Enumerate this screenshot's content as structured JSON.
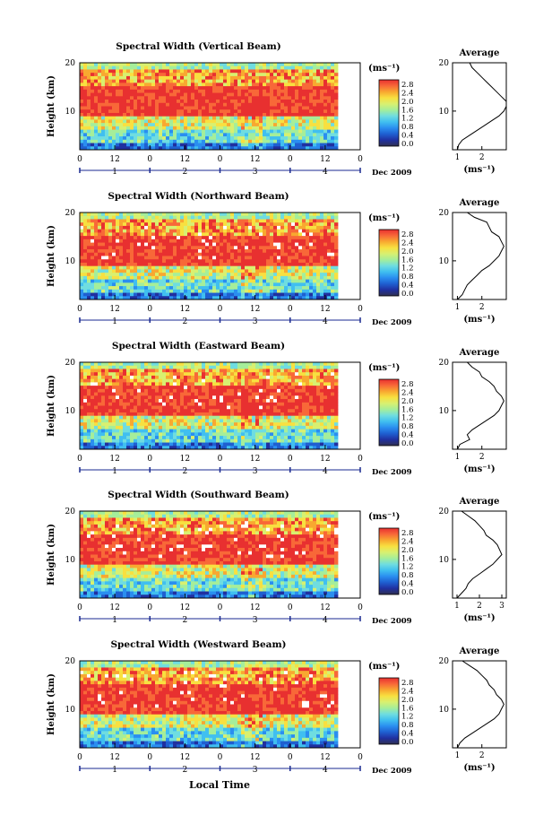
{
  "chart_data": [
    {
      "type": "heatmap",
      "title": "Spectral Width (Vertical Beam)",
      "ylabel": "Height (km)",
      "yticks": [
        "20",
        "10"
      ],
      "xticks": [
        "0",
        "12",
        "0",
        "12",
        "0",
        "12",
        "0",
        "12",
        "0"
      ],
      "days": [
        "1",
        "2",
        "3",
        "4"
      ],
      "date_label": "Dec 2009",
      "colorbar_unit": "(ms⁻¹)",
      "colorbar_ticks": [
        "2.8",
        "2.4",
        "2.0",
        "1.6",
        "1.2",
        "0.8",
        "0.4",
        "0.0"
      ],
      "avg_title": "Average",
      "avg_xticks": [
        "1",
        "2"
      ],
      "avg_xlabel": "(ms⁻¹)",
      "avg_xlim": [
        0.8,
        3.0
      ],
      "profile": [
        [
          1.0,
          2.0
        ],
        [
          1.05,
          3.0
        ],
        [
          1.2,
          4.0
        ],
        [
          1.5,
          5.0
        ],
        [
          1.8,
          6.0
        ],
        [
          2.1,
          7.0
        ],
        [
          2.4,
          8.0
        ],
        [
          2.7,
          9.0
        ],
        [
          2.9,
          10.0
        ],
        [
          3.0,
          11.0
        ],
        [
          3.0,
          12.0
        ],
        [
          2.8,
          13.0
        ],
        [
          2.6,
          14.0
        ],
        [
          2.4,
          15.0
        ],
        [
          2.2,
          16.0
        ],
        [
          2.0,
          17.0
        ],
        [
          1.8,
          18.0
        ],
        [
          1.6,
          19.0
        ],
        [
          1.5,
          20.0
        ]
      ]
    },
    {
      "type": "heatmap",
      "title": "Spectral Width (Northward Beam)",
      "ylabel": "Height (km)",
      "yticks": [
        "20",
        "10"
      ],
      "xticks": [
        "0",
        "12",
        "0",
        "12",
        "0",
        "12",
        "0",
        "12",
        "0"
      ],
      "days": [
        "1",
        "2",
        "3",
        "4"
      ],
      "date_label": "Dec 2009",
      "colorbar_unit": "(ms⁻¹)",
      "colorbar_ticks": [
        "2.8",
        "2.4",
        "2.0",
        "1.6",
        "1.2",
        "0.8",
        "0.4",
        "0.0"
      ],
      "avg_title": "Average",
      "avg_xticks": [
        "1",
        "2"
      ],
      "avg_xlabel": "(ms⁻¹)",
      "avg_xlim": [
        0.8,
        3.0
      ],
      "profile": [
        [
          1.0,
          2.0
        ],
        [
          1.2,
          3.0
        ],
        [
          1.3,
          4.0
        ],
        [
          1.4,
          5.0
        ],
        [
          1.6,
          6.0
        ],
        [
          1.8,
          7.0
        ],
        [
          2.0,
          8.0
        ],
        [
          2.3,
          9.0
        ],
        [
          2.5,
          10.0
        ],
        [
          2.7,
          11.0
        ],
        [
          2.8,
          12.0
        ],
        [
          2.9,
          13.0
        ],
        [
          2.8,
          14.0
        ],
        [
          2.7,
          15.0
        ],
        [
          2.4,
          16.0
        ],
        [
          2.3,
          17.0
        ],
        [
          2.2,
          18.0
        ],
        [
          1.7,
          19.0
        ],
        [
          1.4,
          20.0
        ]
      ]
    },
    {
      "type": "heatmap",
      "title": "Spectral Width (Eastward Beam)",
      "ylabel": "Height (km)",
      "yticks": [
        "20",
        "10"
      ],
      "xticks": [
        "0",
        "12",
        "0",
        "12",
        "0",
        "12",
        "0",
        "12",
        "0"
      ],
      "days": [
        "1",
        "2",
        "3",
        "4"
      ],
      "date_label": "Dec 2009",
      "colorbar_unit": "(ms⁻¹)",
      "colorbar_ticks": [
        "2.8",
        "2.4",
        "2.0",
        "1.6",
        "1.2",
        "0.8",
        "0.4",
        "0.0"
      ],
      "avg_title": "Average",
      "avg_xticks": [
        "1",
        "2"
      ],
      "avg_xlabel": "(ms⁻¹)",
      "avg_xlim": [
        0.8,
        3.0
      ],
      "profile": [
        [
          1.0,
          2.0
        ],
        [
          1.1,
          3.0
        ],
        [
          1.5,
          4.0
        ],
        [
          1.4,
          5.0
        ],
        [
          1.6,
          6.0
        ],
        [
          1.9,
          7.0
        ],
        [
          2.2,
          8.0
        ],
        [
          2.5,
          9.0
        ],
        [
          2.7,
          10.0
        ],
        [
          2.8,
          11.0
        ],
        [
          2.9,
          12.0
        ],
        [
          2.8,
          13.0
        ],
        [
          2.6,
          14.0
        ],
        [
          2.5,
          15.0
        ],
        [
          2.3,
          16.0
        ],
        [
          2.0,
          17.0
        ],
        [
          1.9,
          18.0
        ],
        [
          1.6,
          19.0
        ],
        [
          1.4,
          20.0
        ]
      ]
    },
    {
      "type": "heatmap",
      "title": "Spectral Width (Southward Beam)",
      "ylabel": "Height (km)",
      "yticks": [
        "20",
        "10"
      ],
      "xticks": [
        "0",
        "12",
        "0",
        "12",
        "0",
        "12",
        "0",
        "12",
        "0"
      ],
      "days": [
        "1",
        "2",
        "3",
        "4"
      ],
      "date_label": "Dec 2009",
      "colorbar_unit": "(ms⁻¹)",
      "colorbar_ticks": [
        "2.8",
        "2.4",
        "2.0",
        "1.6",
        "1.2",
        "0.8",
        "0.4",
        "0.0"
      ],
      "avg_title": "Average",
      "avg_xticks": [
        "1",
        "2",
        "3"
      ],
      "avg_xlabel": "(ms⁻¹)",
      "avg_xlim": [
        0.8,
        3.2
      ],
      "profile": [
        [
          1.0,
          2.0
        ],
        [
          1.2,
          3.0
        ],
        [
          1.4,
          4.0
        ],
        [
          1.5,
          5.0
        ],
        [
          1.7,
          6.0
        ],
        [
          2.0,
          7.0
        ],
        [
          2.3,
          8.0
        ],
        [
          2.6,
          9.0
        ],
        [
          2.8,
          10.0
        ],
        [
          3.0,
          11.0
        ],
        [
          2.9,
          12.0
        ],
        [
          2.8,
          13.0
        ],
        [
          2.6,
          14.0
        ],
        [
          2.3,
          15.0
        ],
        [
          2.2,
          16.0
        ],
        [
          2.0,
          17.0
        ],
        [
          1.8,
          18.0
        ],
        [
          1.5,
          19.0
        ],
        [
          1.2,
          20.0
        ]
      ]
    },
    {
      "type": "heatmap",
      "title": "Spectral Width (Westward Beam)",
      "ylabel": "Height (km)",
      "yticks": [
        "20",
        "10"
      ],
      "xticks": [
        "0",
        "12",
        "0",
        "12",
        "0",
        "12",
        "0",
        "12",
        "0"
      ],
      "days": [
        "1",
        "2",
        "3",
        "4"
      ],
      "date_label": "Dec 2009",
      "colorbar_unit": "(ms⁻¹)",
      "colorbar_ticks": [
        "2.8",
        "2.4",
        "2.0",
        "1.6",
        "1.2",
        "0.8",
        "0.4",
        "0.0"
      ],
      "avg_title": "Average",
      "avg_xticks": [
        "1",
        "2"
      ],
      "avg_xlabel": "(ms⁻¹)",
      "avg_xlim": [
        0.8,
        3.0
      ],
      "profile": [
        [
          1.0,
          2.0
        ],
        [
          1.1,
          3.0
        ],
        [
          1.3,
          4.0
        ],
        [
          1.6,
          5.0
        ],
        [
          1.9,
          6.0
        ],
        [
          2.2,
          7.0
        ],
        [
          2.5,
          8.0
        ],
        [
          2.7,
          9.0
        ],
        [
          2.8,
          10.0
        ],
        [
          2.9,
          11.0
        ],
        [
          2.8,
          12.0
        ],
        [
          2.6,
          13.0
        ],
        [
          2.5,
          14.0
        ],
        [
          2.3,
          15.0
        ],
        [
          2.2,
          16.0
        ],
        [
          2.0,
          17.0
        ],
        [
          1.8,
          18.0
        ],
        [
          1.5,
          19.0
        ],
        [
          1.2,
          20.0
        ]
      ]
    }
  ],
  "footer": {
    "xlabel": "Local Time"
  },
  "colormap": [
    "#303050",
    "#2030a0",
    "#1f5fd0",
    "#2a8ef0",
    "#40bff0",
    "#6fdde0",
    "#a5ee9a",
    "#d8f070",
    "#f8e040",
    "#f8a830",
    "#f86838",
    "#e83030"
  ]
}
